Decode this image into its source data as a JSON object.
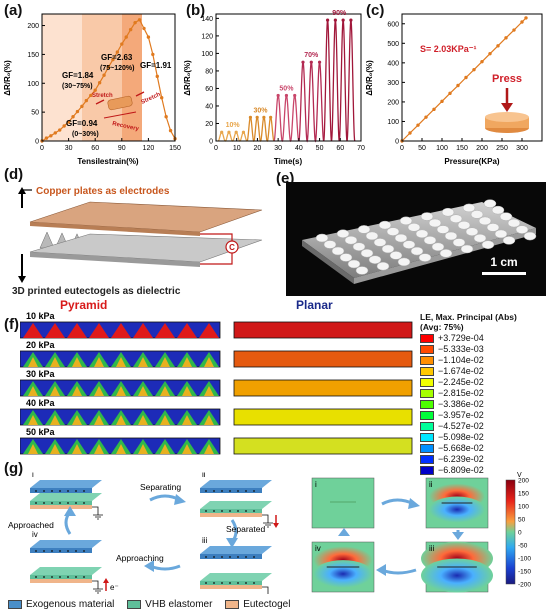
{
  "panel_labels": {
    "a": "(a)",
    "b": "(b)",
    "c": "(c)",
    "d": "(d)",
    "e": "(e)",
    "f": "(f)",
    "g": "(g)"
  },
  "chart_data": [
    {
      "type": "line",
      "panel": "(a)",
      "xlabel": "Tensilestrain(%)",
      "ylabel": "ΔR/R₀(%)",
      "xlim": [
        0,
        150
      ],
      "ylim": [
        0,
        220
      ],
      "xticks": [
        0,
        30,
        60,
        90,
        120,
        150
      ],
      "yticks": [
        0,
        50,
        100,
        150,
        200
      ],
      "x": [
        0,
        5,
        10,
        15,
        20,
        25,
        30,
        35,
        40,
        45,
        50,
        55,
        60,
        65,
        70,
        75,
        80,
        85,
        90,
        95,
        100,
        105,
        110,
        115,
        120,
        125,
        130,
        135,
        140,
        145,
        150
      ],
      "y": [
        0,
        5,
        9,
        14,
        19,
        26,
        33,
        42,
        51,
        60,
        70,
        79,
        88,
        101,
        114,
        128,
        141,
        154,
        168,
        180,
        193,
        205,
        210,
        195,
        180,
        150,
        112,
        75,
        42,
        18,
        4
      ],
      "annotations": [
        "GF=2.63",
        "(75~120%)",
        "GF=1.84",
        "(30~75%)",
        "GF=0.94",
        "(0~30%)",
        "GF=1.91",
        "Stretch",
        "Stretch",
        "Recovery"
      ]
    },
    {
      "type": "line",
      "panel": "(b)",
      "xlabel": "Time(s)",
      "ylabel": "ΔR/R₀(%)",
      "xlim": [
        0,
        70
      ],
      "ylim": [
        0,
        145
      ],
      "xticks": [
        0,
        10,
        20,
        30,
        40,
        50,
        60,
        70
      ],
      "yticks": [
        0,
        20,
        40,
        60,
        80,
        100,
        120,
        140
      ],
      "cycles": [
        {
          "label": "10%",
          "peak": 10,
          "start": 1,
          "end": 15,
          "n": 4,
          "color": "#e8a64c"
        },
        {
          "label": "30%",
          "peak": 27,
          "start": 15,
          "end": 28,
          "n": 4,
          "color": "#d98a2a"
        },
        {
          "label": "50%",
          "peak": 52,
          "start": 28,
          "end": 40,
          "n": 3,
          "color": "#c9466a"
        },
        {
          "label": "70%",
          "peak": 90,
          "start": 40,
          "end": 52,
          "n": 3,
          "color": "#b32a52"
        },
        {
          "label": "90%",
          "peak": 138,
          "start": 52,
          "end": 67,
          "n": 4,
          "color": "#a1173a"
        }
      ]
    },
    {
      "type": "line",
      "panel": "(c)",
      "xlabel": "Pressure(KPa)",
      "ylabel": "ΔR/R₀(%)",
      "xlim": [
        0,
        350
      ],
      "ylim": [
        0,
        650
      ],
      "xticks": [
        0,
        50,
        100,
        150,
        200,
        250,
        300
      ],
      "yticks": [
        0,
        100,
        200,
        300,
        400,
        500,
        600
      ],
      "x": [
        0,
        20,
        40,
        60,
        80,
        100,
        120,
        140,
        160,
        180,
        200,
        220,
        240,
        260,
        280,
        300,
        310
      ],
      "y": [
        0,
        41,
        81,
        122,
        162,
        203,
        244,
        284,
        325,
        365,
        406,
        447,
        487,
        528,
        568,
        609,
        630
      ],
      "annotations": [
        "S= 2.03KPa⁻¹",
        "Press"
      ]
    }
  ],
  "panel_d": {
    "top_label": "Copper plates as electrodes",
    "bottom_label": "3D printed eutectogels as dielectric",
    "circuit_symbol": "C"
  },
  "panel_e": {
    "scale_bar": "1 cm"
  },
  "panel_f": {
    "headers": {
      "left": "Pyramid",
      "right": "Planar"
    },
    "rows": [
      "10 kPa",
      "20 kPa",
      "30 kPa",
      "40 kPa",
      "50 kPa"
    ],
    "planar_colors": [
      "#d01818",
      "#e55a10",
      "#f0a000",
      "#e8e000",
      "#d4e020"
    ],
    "legend_title": "LE, Max. Principal (Abs)",
    "legend_subtitle": "(Avg: 75%)",
    "legend_values": [
      "+3.729e-04",
      "−5.333e-03",
      "−1.104e-02",
      "−1.674e-02",
      "−2.245e-02",
      "−2.815e-02",
      "−3.386e-02",
      "−3.957e-02",
      "−4.527e-02",
      "−5.098e-02",
      "−5.668e-02",
      "−6.239e-02",
      "−6.809e-02"
    ],
    "legend_colors": [
      "#ff0000",
      "#ff4a00",
      "#ff8f00",
      "#ffc800",
      "#f0ff00",
      "#a6ff00",
      "#4dff00",
      "#00ff3a",
      "#00ff9a",
      "#00e6ff",
      "#0090ff",
      "#0030ff",
      "#0000c8"
    ]
  },
  "panel_g": {
    "roman": [
      "i",
      "ii",
      "iii",
      "iv"
    ],
    "steps": [
      "Separating",
      "Separated",
      "Approaching",
      "Approached"
    ],
    "electron": "e⁻",
    "legend": [
      {
        "label": "Exogenous material",
        "color": "#4a8fc9"
      },
      {
        "label": "VHB elastomer",
        "color": "#5fbf9a"
      },
      {
        "label": "Eutectogel",
        "color": "#f0b58a"
      }
    ],
    "colorbar": {
      "unit": "V",
      "ticks": [
        "200",
        "150",
        "100",
        "50",
        "0",
        "-50",
        "-100",
        "-150",
        "-200"
      ]
    }
  }
}
